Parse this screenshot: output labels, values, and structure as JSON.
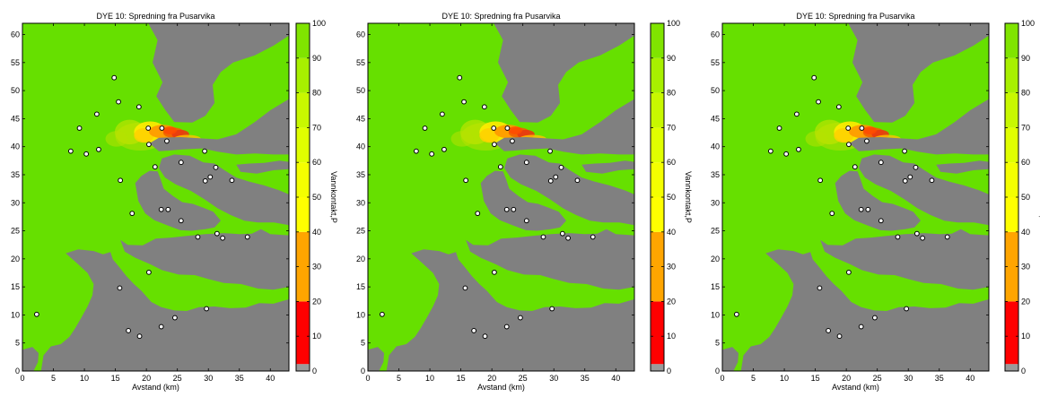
{
  "colors": {
    "water": "#66e000",
    "land": "#808080",
    "marker_stroke": "#000000",
    "marker_fill": "#ffffff"
  },
  "chart_data": [
    {
      "type": "heatmap",
      "title": "DYE 10: Spredning fra Pusarvika",
      "xlabel": "Avstand (km)",
      "ylabel": "",
      "xlim": [
        0,
        43
      ],
      "ylim": [
        0,
        62
      ],
      "xticks": [
        0,
        5,
        10,
        15,
        20,
        25,
        30,
        35,
        40
      ],
      "yticks": [
        0,
        5,
        10,
        15,
        20,
        25,
        30,
        35,
        40,
        45,
        50,
        55,
        60
      ],
      "colorbar": {
        "label": "Vannkontakt,P",
        "ticks": [
          0,
          10,
          20,
          30,
          40,
          50,
          60,
          70,
          80,
          90,
          100
        ]
      },
      "stations": [
        [
          14.8,
          52.3
        ],
        [
          15.5,
          48.0
        ],
        [
          18.8,
          47.1
        ],
        [
          12.0,
          45.8
        ],
        [
          9.2,
          43.3
        ],
        [
          20.3,
          43.3
        ],
        [
          22.5,
          43.3
        ],
        [
          23.3,
          41.0
        ],
        [
          20.4,
          40.4
        ],
        [
          12.3,
          39.5
        ],
        [
          7.8,
          39.2
        ],
        [
          10.3,
          38.7
        ],
        [
          29.4,
          39.2
        ],
        [
          25.6,
          37.2
        ],
        [
          21.4,
          36.4
        ],
        [
          31.2,
          36.3
        ],
        [
          30.3,
          34.6
        ],
        [
          29.5,
          33.9
        ],
        [
          33.8,
          34.0
        ],
        [
          15.8,
          34.0
        ],
        [
          17.7,
          28.1
        ],
        [
          22.4,
          28.8
        ],
        [
          23.5,
          28.8
        ],
        [
          25.6,
          26.8
        ],
        [
          28.3,
          23.9
        ],
        [
          31.4,
          24.5
        ],
        [
          32.3,
          23.7
        ],
        [
          36.3,
          23.9
        ],
        [
          20.4,
          17.6
        ],
        [
          15.7,
          14.8
        ],
        [
          2.3,
          10.1
        ],
        [
          29.7,
          11.1
        ],
        [
          24.6,
          9.5
        ],
        [
          22.4,
          7.9
        ],
        [
          17.1,
          7.2
        ],
        [
          18.9,
          6.2
        ]
      ]
    },
    {
      "type": "heatmap",
      "title": "DYE 10: Spredning fra Pusarvika",
      "xlabel": "Avstand (km)",
      "ylabel": "",
      "xlim": [
        0,
        43
      ],
      "ylim": [
        0,
        62
      ],
      "xticks": [
        0,
        5,
        10,
        15,
        20,
        25,
        30,
        35,
        40
      ],
      "yticks": [
        0,
        5,
        10,
        15,
        20,
        25,
        30,
        35,
        40,
        45,
        50,
        55,
        60
      ],
      "colorbar": {
        "label": "Vannkontakt,P",
        "ticks": [
          0,
          10,
          20,
          30,
          40,
          50,
          60,
          70,
          80,
          90,
          100
        ]
      },
      "stations": [
        [
          14.8,
          52.3
        ],
        [
          15.5,
          48.0
        ],
        [
          18.8,
          47.1
        ],
        [
          12.0,
          45.8
        ],
        [
          9.2,
          43.3
        ],
        [
          20.3,
          43.3
        ],
        [
          22.5,
          43.3
        ],
        [
          23.3,
          41.0
        ],
        [
          20.4,
          40.4
        ],
        [
          12.3,
          39.5
        ],
        [
          7.8,
          39.2
        ],
        [
          10.3,
          38.7
        ],
        [
          29.4,
          39.2
        ],
        [
          25.6,
          37.2
        ],
        [
          21.4,
          36.4
        ],
        [
          31.2,
          36.3
        ],
        [
          30.3,
          34.6
        ],
        [
          29.5,
          33.9
        ],
        [
          33.8,
          34.0
        ],
        [
          15.8,
          34.0
        ],
        [
          17.7,
          28.1
        ],
        [
          22.4,
          28.8
        ],
        [
          23.5,
          28.8
        ],
        [
          25.6,
          26.8
        ],
        [
          28.3,
          23.9
        ],
        [
          31.4,
          24.5
        ],
        [
          32.3,
          23.7
        ],
        [
          36.3,
          23.9
        ],
        [
          20.4,
          17.6
        ],
        [
          15.7,
          14.8
        ],
        [
          2.3,
          10.1
        ],
        [
          29.7,
          11.1
        ],
        [
          24.6,
          9.5
        ],
        [
          22.4,
          7.9
        ],
        [
          17.1,
          7.2
        ],
        [
          18.9,
          6.2
        ]
      ]
    },
    {
      "type": "heatmap",
      "title": "DYE 10: Spredning fra Pusarvika",
      "xlabel": "Avstand (km)",
      "ylabel": "",
      "xlim": [
        0,
        43
      ],
      "ylim": [
        0,
        62
      ],
      "xticks": [
        0,
        5,
        10,
        15,
        20,
        25,
        30,
        35,
        40
      ],
      "yticks": [
        0,
        5,
        10,
        15,
        20,
        25,
        30,
        35,
        40,
        45,
        50,
        55,
        60
      ],
      "colorbar": {
        "label": "Vannkontakt,P",
        "ticks": [
          0,
          10,
          20,
          30,
          40,
          50,
          60,
          70,
          80,
          90,
          100
        ]
      },
      "stations": [
        [
          14.8,
          52.3
        ],
        [
          15.5,
          48.0
        ],
        [
          18.8,
          47.1
        ],
        [
          12.0,
          45.8
        ],
        [
          9.2,
          43.3
        ],
        [
          20.3,
          43.3
        ],
        [
          22.5,
          43.3
        ],
        [
          23.3,
          41.0
        ],
        [
          20.4,
          40.4
        ],
        [
          12.3,
          39.5
        ],
        [
          7.8,
          39.2
        ],
        [
          10.3,
          38.7
        ],
        [
          29.4,
          39.2
        ],
        [
          25.6,
          37.2
        ],
        [
          21.4,
          36.4
        ],
        [
          31.2,
          36.3
        ],
        [
          30.3,
          34.6
        ],
        [
          29.5,
          33.9
        ],
        [
          33.8,
          34.0
        ],
        [
          15.8,
          34.0
        ],
        [
          17.7,
          28.1
        ],
        [
          22.4,
          28.8
        ],
        [
          23.5,
          28.8
        ],
        [
          25.6,
          26.8
        ],
        [
          28.3,
          23.9
        ],
        [
          31.4,
          24.5
        ],
        [
          32.3,
          23.7
        ],
        [
          36.3,
          23.9
        ],
        [
          20.4,
          17.6
        ],
        [
          15.7,
          14.8
        ],
        [
          2.3,
          10.1
        ],
        [
          29.7,
          11.1
        ],
        [
          24.6,
          9.5
        ],
        [
          22.4,
          7.9
        ],
        [
          17.1,
          7.2
        ],
        [
          18.9,
          6.2
        ]
      ]
    }
  ]
}
